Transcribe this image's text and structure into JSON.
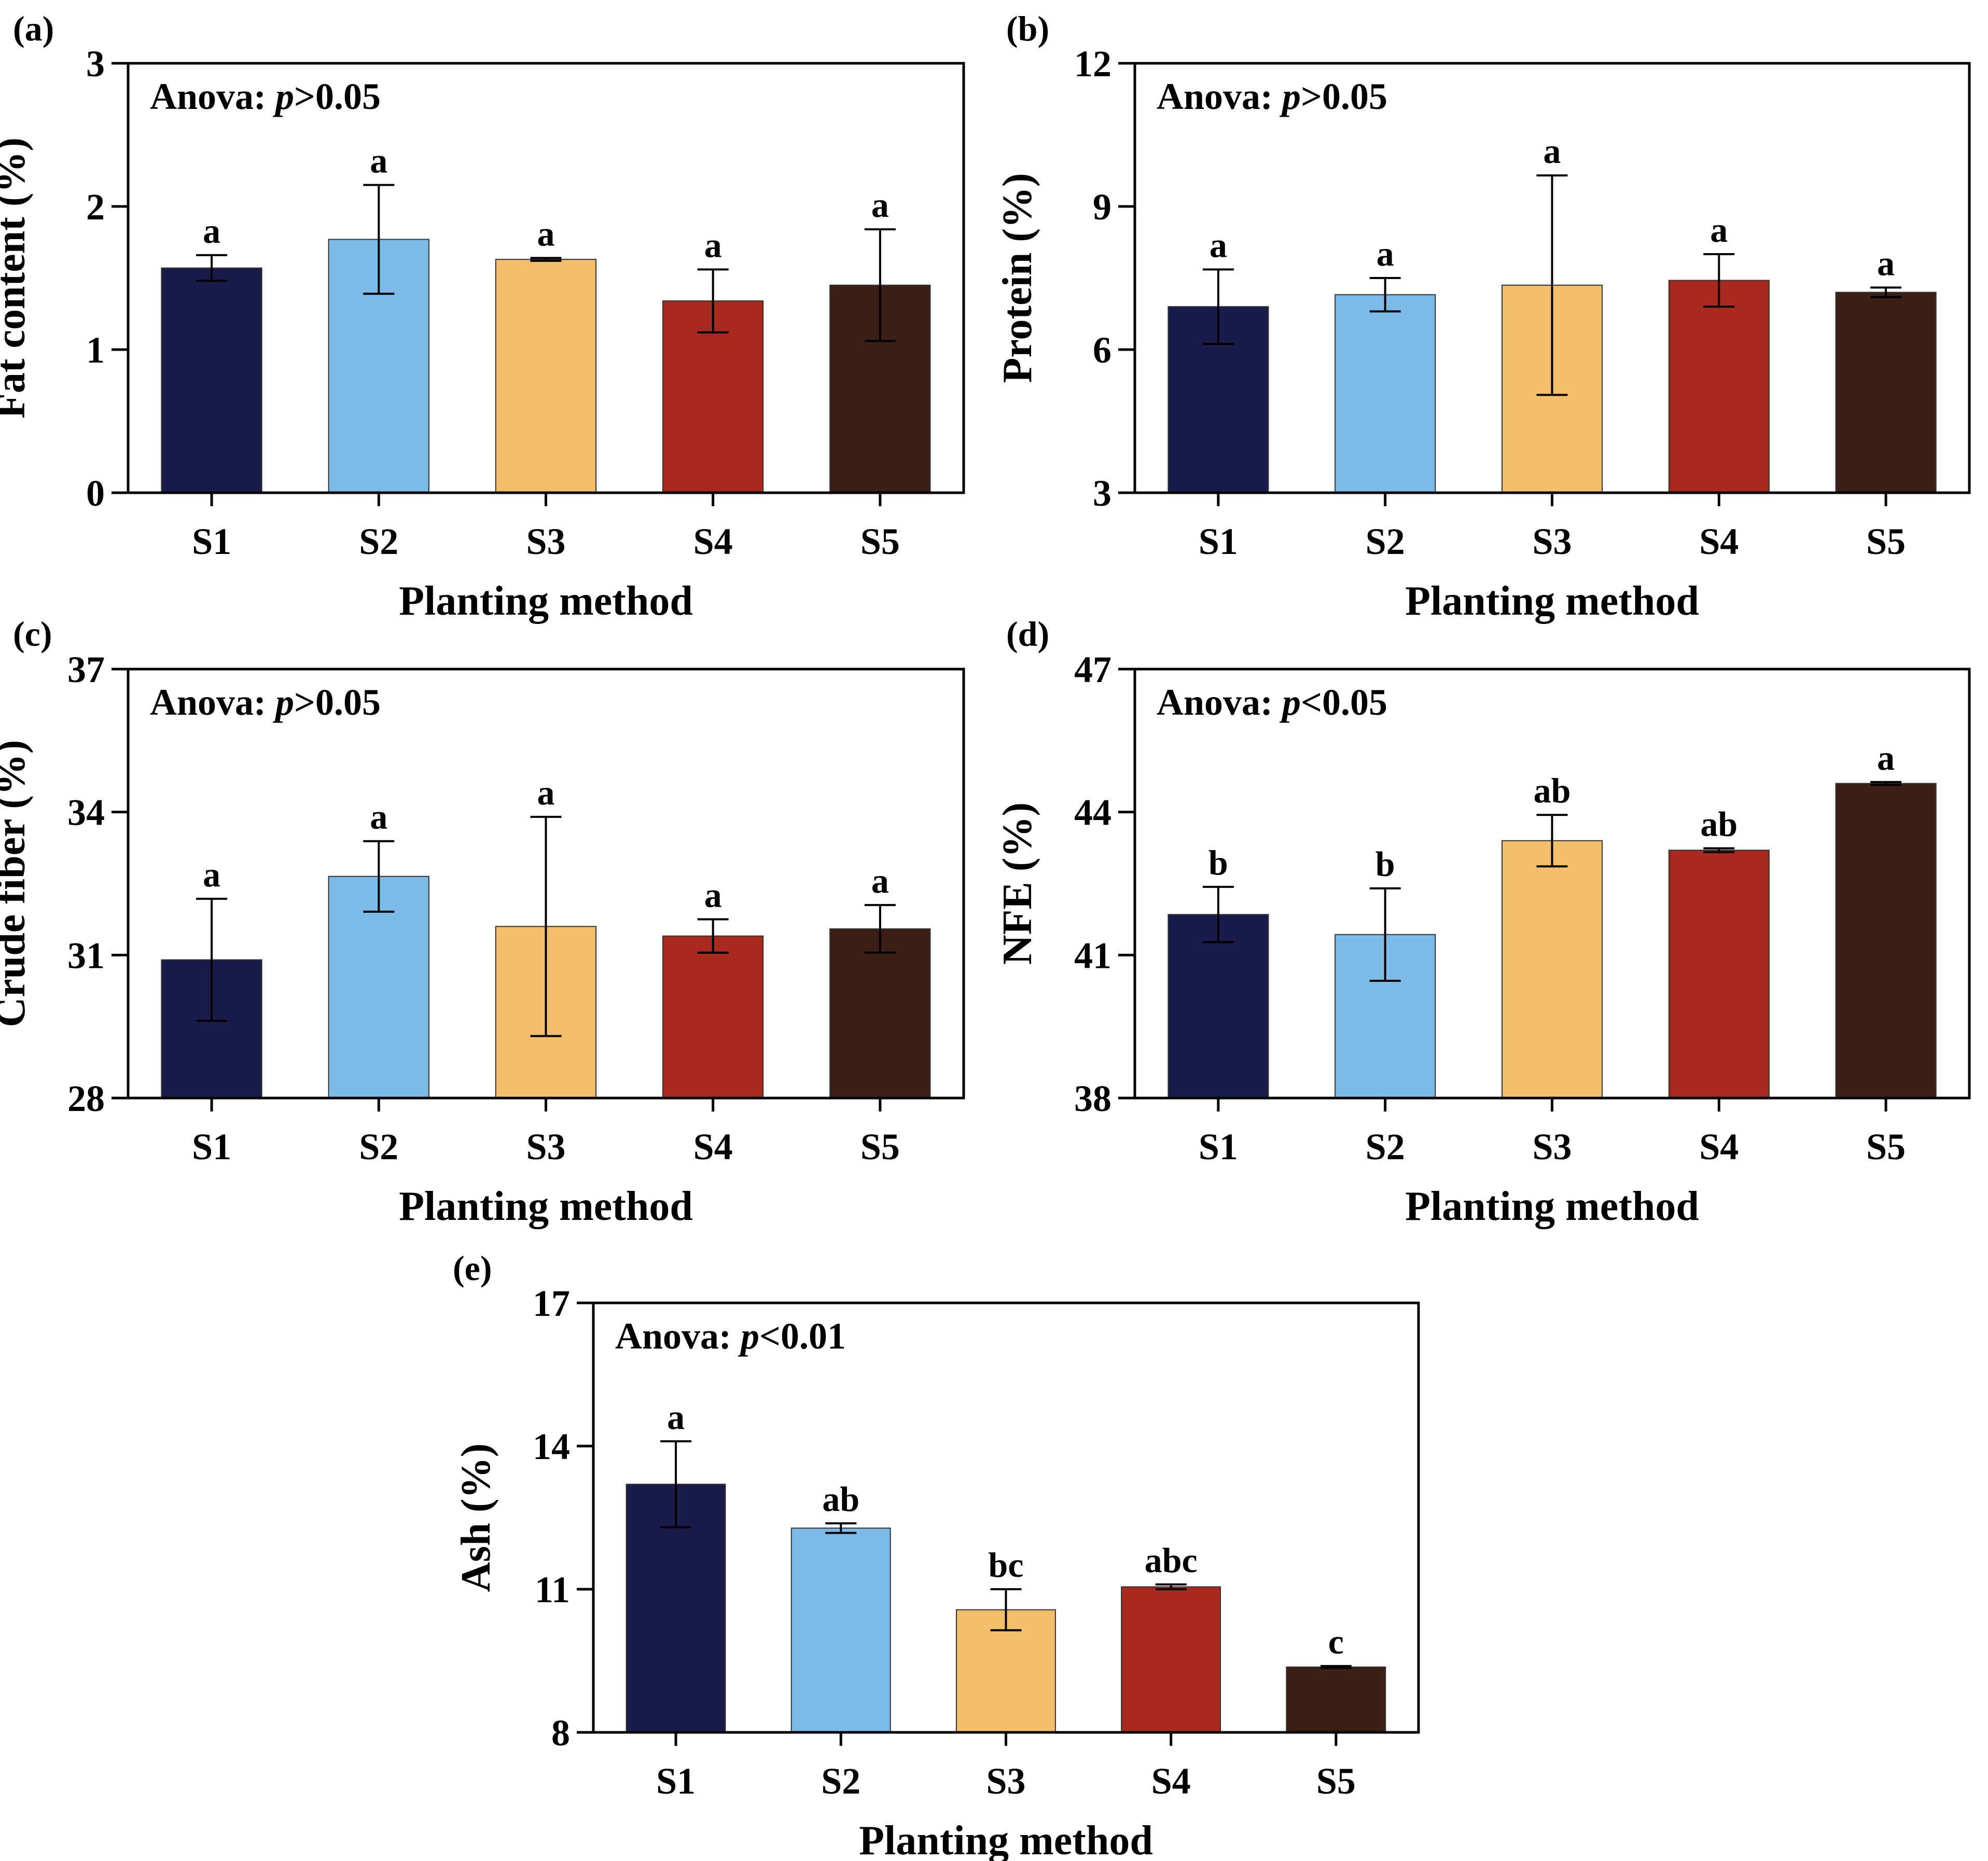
{
  "chart_data": [
    {
      "type": "bar",
      "panel_label": "(a)",
      "categories": [
        "S1",
        "S2",
        "S3",
        "S4",
        "S5"
      ],
      "values": [
        1.57,
        1.77,
        1.63,
        1.34,
        1.45
      ],
      "errors": [
        0.09,
        0.38,
        0.01,
        0.22,
        0.39
      ],
      "significance": [
        "a",
        "a",
        "a",
        "a",
        "a"
      ],
      "anova": {
        "prefix": "Anova: ",
        "p": "p",
        "rest": ">0.05"
      },
      "xlabel": "Planting method",
      "ylabel": "Fat content (%)",
      "ylim": [
        0,
        3
      ],
      "yticks": [
        0,
        1,
        2,
        3
      ],
      "ytick_labels": [
        "0",
        "1",
        "2",
        "3"
      ]
    },
    {
      "type": "bar",
      "panel_label": "(b)",
      "categories": [
        "S1",
        "S2",
        "S3",
        "S4",
        "S5"
      ],
      "values": [
        6.9,
        7.15,
        7.35,
        7.45,
        7.2
      ],
      "errors": [
        0.78,
        0.35,
        2.3,
        0.55,
        0.1
      ],
      "significance": [
        "a",
        "a",
        "a",
        "a",
        "a"
      ],
      "anova": {
        "prefix": "Anova: ",
        "p": "p",
        "rest": ">0.05"
      },
      "xlabel": "Planting method",
      "ylabel": "Protein (%)",
      "ylim": [
        3,
        12
      ],
      "yticks": [
        3,
        6,
        9,
        12
      ],
      "ytick_labels": [
        "3",
        "6",
        "9",
        "12"
      ]
    },
    {
      "type": "bar",
      "panel_label": "(c)",
      "categories": [
        "S1",
        "S2",
        "S3",
        "S4",
        "S5"
      ],
      "values": [
        30.9,
        32.65,
        31.6,
        31.4,
        31.55
      ],
      "errors": [
        1.28,
        0.74,
        2.3,
        0.35,
        0.5
      ],
      "significance": [
        "a",
        "a",
        "a",
        "a",
        "a"
      ],
      "anova": {
        "prefix": "Anova: ",
        "p": "p",
        "rest": ">0.05"
      },
      "xlabel": "Planting method",
      "ylabel": "Crude fiber (%)",
      "ylim": [
        28,
        37
      ],
      "yticks": [
        28,
        31,
        34,
        37
      ],
      "ytick_labels": [
        "28",
        "31",
        "34",
        "37"
      ]
    },
    {
      "type": "bar",
      "panel_label": "(d)",
      "categories": [
        "S1",
        "S2",
        "S3",
        "S4",
        "S5"
      ],
      "values": [
        41.85,
        41.43,
        43.4,
        43.2,
        44.6
      ],
      "errors": [
        0.58,
        0.97,
        0.54,
        0.04,
        0.03
      ],
      "significance": [
        "b",
        "b",
        "ab",
        "ab",
        "a"
      ],
      "anova": {
        "prefix": "Anova: ",
        "p": "p",
        "rest": "<0.05"
      },
      "xlabel": "Planting method",
      "ylabel": "NFE (%)",
      "ylim": [
        38,
        47
      ],
      "yticks": [
        38,
        41,
        44,
        47
      ],
      "ytick_labels": [
        "38",
        "41",
        "44",
        "47"
      ]
    },
    {
      "type": "bar",
      "panel_label": "(e)",
      "categories": [
        "S1",
        "S2",
        "S3",
        "S4",
        "S5"
      ],
      "values": [
        13.2,
        12.28,
        10.57,
        11.05,
        9.37
      ],
      "errors": [
        0.9,
        0.1,
        0.43,
        0.05,
        0.02
      ],
      "significance": [
        "a",
        "ab",
        "bc",
        "abc",
        "c"
      ],
      "anova": {
        "prefix": "Anova: ",
        "p": "p",
        "rest": "<0.01"
      },
      "xlabel": "Planting method",
      "ylabel": "Ash (%)",
      "ylim": [
        8,
        17
      ],
      "yticks": [
        8,
        11,
        14,
        17
      ],
      "ytick_labels": [
        "8",
        "11",
        "14",
        "17"
      ]
    }
  ],
  "colors": {
    "bars": [
      "#1b1b4b",
      "#7ebae7",
      "#f4bf6a",
      "#a8291e",
      "#3c2017"
    ],
    "axis": "#000000",
    "background": "#ffffff"
  }
}
